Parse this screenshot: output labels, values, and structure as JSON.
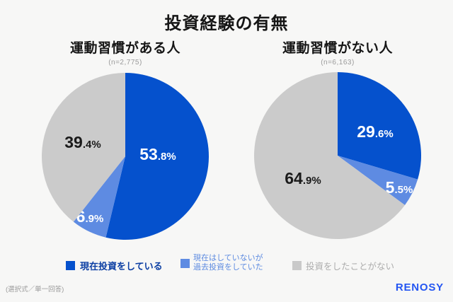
{
  "background": "#F7F7F6",
  "title": "投資経験の有無",
  "chart_data": [
    {
      "type": "pie",
      "title": "運動習慣がある人",
      "sample_size_label": "(n=2,775)",
      "start_angle_deg": 0,
      "direction": "clockwise",
      "slices": [
        {
          "label": "現在投資をしている",
          "value": 53.8,
          "color": "#0551CD",
          "label_color": "#FFFFFF"
        },
        {
          "label": "現在はしていないが過去投資をしていた",
          "value": 6.9,
          "color": "#5E8BE2",
          "label_color": "#FFFFFF"
        },
        {
          "label": "投資をしたことがない",
          "value": 39.4,
          "color": "#CBCBCB",
          "label_color": "#1A1A1A"
        }
      ]
    },
    {
      "type": "pie",
      "title": "運動習慣がない人",
      "sample_size_label": "(n=6,163)",
      "start_angle_deg": 0,
      "direction": "clockwise",
      "slices": [
        {
          "label": "現在投資をしている",
          "value": 29.6,
          "color": "#0551CD",
          "label_color": "#FFFFFF"
        },
        {
          "label": "現在はしていないが過去投資をしていた",
          "value": 5.5,
          "color": "#5E8BE2",
          "label_color": "#FFFFFF"
        },
        {
          "label": "投資をしたことがない",
          "value": 64.9,
          "color": "#CBCBCB",
          "label_color": "#1A1A1A"
        }
      ]
    }
  ],
  "legend": {
    "items": [
      {
        "label": "現在投資をしている",
        "swatch_color": "#0551CD",
        "text_color": "#0B3EA3"
      },
      {
        "label": "現在はしていないが\n過去投資をしていた",
        "swatch_color": "#5E8BE2",
        "text_color": "#5C8AE0"
      },
      {
        "label": "投資をしたことがない",
        "swatch_color": "#C9C9C9",
        "text_color": "#ACACAC"
      }
    ]
  },
  "footer": {
    "note": "(選択式／単一回答)",
    "brand": "RENOSY",
    "brand_color": "#2456F2"
  }
}
